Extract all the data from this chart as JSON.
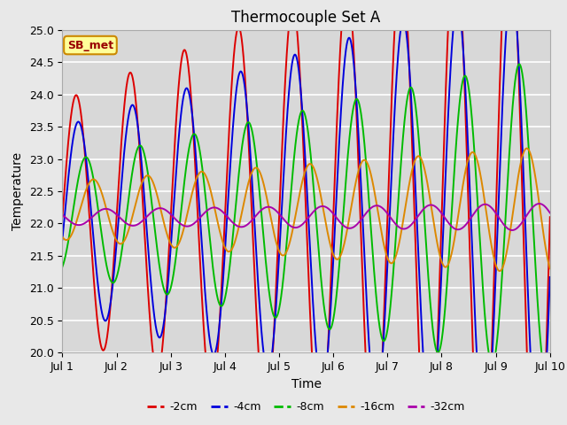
{
  "title": "Thermocouple Set A",
  "xlabel": "Time",
  "ylabel": "Temperature",
  "annotation": "SB_met",
  "xlim_days": [
    1,
    10
  ],
  "ylim": [
    20.0,
    25.0
  ],
  "yticks": [
    20.0,
    20.5,
    21.0,
    21.5,
    22.0,
    22.5,
    23.0,
    23.5,
    24.0,
    24.5,
    25.0
  ],
  "xtick_labels": [
    "Jul 1",
    "Jul 2",
    "Jul 3",
    "Jul 4",
    "Jul 5",
    "Jul 6",
    "Jul 7",
    "Jul 8",
    "Jul 9",
    "Jul 10"
  ],
  "series": {
    "-2cm": {
      "color": "#dd0000",
      "lw": 1.4,
      "amplitude": 1.8,
      "mean": 22.1,
      "phase": 0.0,
      "amp_growth": 0.35
    },
    "-4cm": {
      "color": "#0000dd",
      "lw": 1.4,
      "amplitude": 1.4,
      "mean": 22.1,
      "phase": 0.04,
      "amp_growth": 0.26
    },
    "-8cm": {
      "color": "#00bb00",
      "lw": 1.4,
      "amplitude": 0.85,
      "mean": 22.1,
      "phase": 0.18,
      "amp_growth": 0.18
    },
    "-16cm": {
      "color": "#dd8800",
      "lw": 1.4,
      "amplitude": 0.45,
      "mean": 22.2,
      "phase": 0.32,
      "amp_growth": 0.06
    },
    "-32cm": {
      "color": "#aa00aa",
      "lw": 1.4,
      "amplitude": 0.12,
      "mean": 22.1,
      "phase": 0.55,
      "amp_growth": 0.01
    }
  },
  "legend_order": [
    "-2cm",
    "-4cm",
    "-8cm",
    "-16cm",
    "-32cm"
  ],
  "bg_color": "#e8e8e8",
  "plot_bg_color": "#d8d8d8",
  "annotation_box_color": "#ffff99",
  "annotation_text_color": "#990000",
  "annotation_border_color": "#cc8800"
}
